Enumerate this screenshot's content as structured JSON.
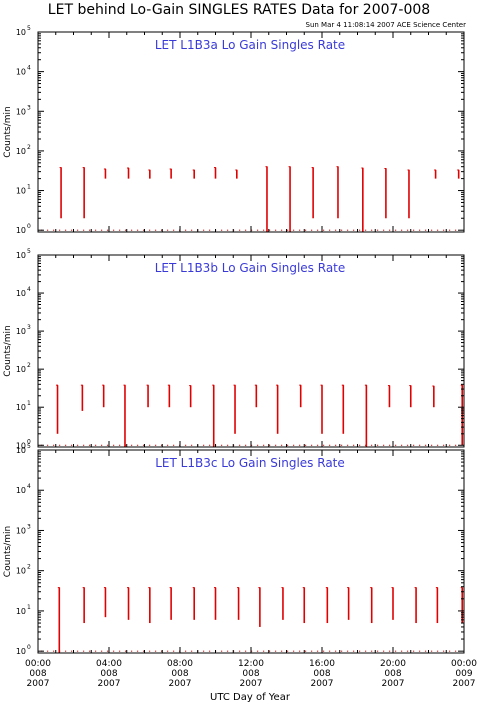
{
  "title": "LET behind Lo-Gain SINGLES RATES Data for 2007-008",
  "subtitle": "Sun Mar  4 11:08:14 2007 ACE Science Center",
  "colors": {
    "data": "#e00000",
    "panel_title": "#3a3ad8",
    "axes": "#000000"
  },
  "chart_data": [
    {
      "type": "line",
      "title": "LET L1B3a Lo Gain Singles Rate",
      "ylabel": "Counts/min",
      "xlabel": "UTC Day of Year",
      "yscale": "log",
      "ylim": [
        0.9,
        100000
      ],
      "xlim": [
        0,
        24
      ],
      "yticks": [
        {
          "base": "10",
          "exp": "0"
        },
        {
          "base": "10",
          "exp": "1"
        },
        {
          "base": "10",
          "exp": "2"
        },
        {
          "base": "10",
          "exp": "3"
        },
        {
          "base": "10",
          "exp": "4"
        },
        {
          "base": "10",
          "exp": "5"
        }
      ],
      "spikes": [
        {
          "x": 1.3,
          "top": 38,
          "bottom": 2
        },
        {
          "x": 2.6,
          "top": 38,
          "bottom": 2
        },
        {
          "x": 3.8,
          "top": 35,
          "bottom": 20
        },
        {
          "x": 5.1,
          "top": 37,
          "bottom": 20
        },
        {
          "x": 6.3,
          "top": 33,
          "bottom": 20
        },
        {
          "x": 7.5,
          "top": 35,
          "bottom": 20
        },
        {
          "x": 8.8,
          "top": 33,
          "bottom": 20
        },
        {
          "x": 10.0,
          "top": 38,
          "bottom": 20
        },
        {
          "x": 11.2,
          "top": 33,
          "bottom": 20
        },
        {
          "x": 12.9,
          "top": 40,
          "bottom": 0.9
        },
        {
          "x": 14.2,
          "top": 40,
          "bottom": 0.9
        },
        {
          "x": 15.5,
          "top": 38,
          "bottom": 2
        },
        {
          "x": 16.9,
          "top": 40,
          "bottom": 2
        },
        {
          "x": 18.3,
          "top": 37,
          "bottom": 0.9
        },
        {
          "x": 19.6,
          "top": 36,
          "bottom": 2
        },
        {
          "x": 20.9,
          "top": 33,
          "bottom": 2
        },
        {
          "x": 22.4,
          "top": 33,
          "bottom": 20
        },
        {
          "x": 23.7,
          "top": 33,
          "bottom": 20
        }
      ]
    },
    {
      "type": "line",
      "title": "LET L1B3b Lo Gain Singles Rate",
      "ylabel": "Counts/min",
      "xlabel": "UTC Day of Year",
      "yscale": "log",
      "ylim": [
        0.9,
        100000
      ],
      "xlim": [
        0,
        24
      ],
      "yticks": [
        {
          "base": "10",
          "exp": "0"
        },
        {
          "base": "10",
          "exp": "1"
        },
        {
          "base": "10",
          "exp": "2"
        },
        {
          "base": "10",
          "exp": "3"
        },
        {
          "base": "10",
          "exp": "4"
        },
        {
          "base": "10",
          "exp": "5"
        }
      ],
      "spikes": [
        {
          "x": 1.1,
          "top": 38,
          "bottom": 2
        },
        {
          "x": 2.5,
          "top": 38,
          "bottom": 8
        },
        {
          "x": 3.7,
          "top": 38,
          "bottom": 10
        },
        {
          "x": 4.9,
          "top": 38,
          "bottom": 0.9
        },
        {
          "x": 6.2,
          "top": 38,
          "bottom": 10
        },
        {
          "x": 7.4,
          "top": 38,
          "bottom": 10
        },
        {
          "x": 8.6,
          "top": 37,
          "bottom": 10
        },
        {
          "x": 9.9,
          "top": 38,
          "bottom": 0.9
        },
        {
          "x": 11.1,
          "top": 38,
          "bottom": 2
        },
        {
          "x": 12.3,
          "top": 38,
          "bottom": 10
        },
        {
          "x": 13.5,
          "top": 38,
          "bottom": 2
        },
        {
          "x": 14.8,
          "top": 38,
          "bottom": 10
        },
        {
          "x": 16.0,
          "top": 38,
          "bottom": 2
        },
        {
          "x": 17.2,
          "top": 38,
          "bottom": 2
        },
        {
          "x": 18.5,
          "top": 38,
          "bottom": 0.9
        },
        {
          "x": 19.8,
          "top": 37,
          "bottom": 10
        },
        {
          "x": 21.0,
          "top": 37,
          "bottom": 10
        },
        {
          "x": 22.3,
          "top": 36,
          "bottom": 10
        },
        {
          "x": 23.9,
          "top": 38,
          "bottom": 1
        }
      ]
    },
    {
      "type": "line",
      "title": "LET L1B3c Lo Gain Singles Rate",
      "ylabel": "Counts/min",
      "xlabel": "UTC Day of Year",
      "yscale": "log",
      "ylim": [
        0.9,
        100000
      ],
      "xlim": [
        0,
        24
      ],
      "yticks": [
        {
          "base": "10",
          "exp": "0"
        },
        {
          "base": "10",
          "exp": "1"
        },
        {
          "base": "10",
          "exp": "2"
        },
        {
          "base": "10",
          "exp": "3"
        },
        {
          "base": "10",
          "exp": "4"
        },
        {
          "base": "10",
          "exp": "5"
        }
      ],
      "spikes": [
        {
          "x": 1.2,
          "top": 38,
          "bottom": 0.9
        },
        {
          "x": 2.6,
          "top": 38,
          "bottom": 5
        },
        {
          "x": 3.8,
          "top": 38,
          "bottom": 7
        },
        {
          "x": 5.1,
          "top": 38,
          "bottom": 6
        },
        {
          "x": 6.3,
          "top": 38,
          "bottom": 5
        },
        {
          "x": 7.5,
          "top": 38,
          "bottom": 6
        },
        {
          "x": 8.8,
          "top": 38,
          "bottom": 6
        },
        {
          "x": 10.0,
          "top": 38,
          "bottom": 6
        },
        {
          "x": 11.3,
          "top": 38,
          "bottom": 6
        },
        {
          "x": 12.5,
          "top": 38,
          "bottom": 4
        },
        {
          "x": 13.8,
          "top": 38,
          "bottom": 6
        },
        {
          "x": 15.0,
          "top": 38,
          "bottom": 5
        },
        {
          "x": 16.3,
          "top": 38,
          "bottom": 5
        },
        {
          "x": 17.5,
          "top": 38,
          "bottom": 6
        },
        {
          "x": 18.8,
          "top": 38,
          "bottom": 5
        },
        {
          "x": 20.0,
          "top": 38,
          "bottom": 6
        },
        {
          "x": 21.3,
          "top": 38,
          "bottom": 5
        },
        {
          "x": 22.5,
          "top": 38,
          "bottom": 5
        },
        {
          "x": 23.9,
          "top": 38,
          "bottom": 5
        }
      ]
    }
  ],
  "x_ticks": [
    {
      "x": 0,
      "time": "00:00",
      "doy": "008",
      "year": "2007"
    },
    {
      "x": 4,
      "time": "04:00",
      "doy": "008",
      "year": "2007"
    },
    {
      "x": 8,
      "time": "08:00",
      "doy": "008",
      "year": "2007"
    },
    {
      "x": 12,
      "time": "12:00",
      "doy": "008",
      "year": "2007"
    },
    {
      "x": 16,
      "time": "16:00",
      "doy": "008",
      "year": "2007"
    },
    {
      "x": 20,
      "time": "20:00",
      "doy": "008",
      "year": "2007"
    },
    {
      "x": 24,
      "time": "00:00",
      "doy": "009",
      "year": "2007"
    }
  ],
  "x_axis_label": "UTC Day of Year"
}
